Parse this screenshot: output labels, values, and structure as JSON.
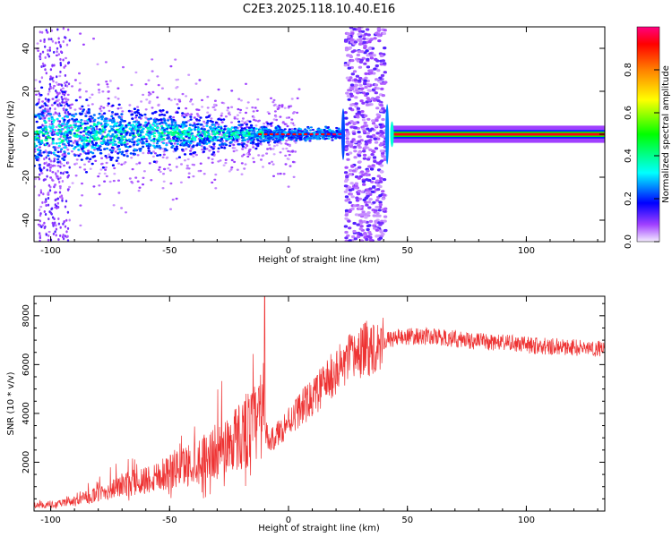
{
  "title": "C2E3.2025.118.10.40.E16",
  "chart_data": [
    {
      "type": "heatmap",
      "xlabel": "Height of straight line (km)",
      "ylabel": "Frequency (Hz)",
      "xlim": [
        -107,
        133
      ],
      "ylim": [
        -50,
        50
      ],
      "xticks": [
        -100,
        -50,
        0,
        50,
        100
      ],
      "yticks": [
        -40,
        -20,
        0,
        20,
        40
      ],
      "colorbar": {
        "label": "Normalized spectral amplitude",
        "range": [
          0,
          1
        ],
        "ticks": [
          0.0,
          0.2,
          0.4,
          0.6,
          0.8
        ],
        "colormap": [
          "#ffffff",
          "#8a00ff",
          "#0000ff",
          "#00ffff",
          "#00ff00",
          "#ffff00",
          "#ff8000",
          "#ff0000",
          "#ff0080"
        ]
      },
      "features": {
        "main_band_center_hz": 0,
        "noisy_region_km": [
          -107,
          -10
        ],
        "gap_region_km": [
          24,
          41
        ],
        "clean_band_km": [
          43,
          133
        ]
      }
    },
    {
      "type": "line",
      "xlabel": "Height of straight line (km)",
      "ylabel": "SNR (10 * v/v)",
      "xlim": [
        -107,
        133
      ],
      "ylim": [
        0,
        8800
      ],
      "xticks": [
        -100,
        -50,
        0,
        50,
        100
      ],
      "yticks": [
        2000,
        4000,
        6000,
        8000
      ],
      "color": "#ee3333",
      "envelope": {
        "x": [
          -107,
          -100,
          -90,
          -80,
          -70,
          -60,
          -50,
          -40,
          -30,
          -20,
          -15,
          -11,
          -10,
          -8,
          -5,
          0,
          5,
          10,
          15,
          20,
          25,
          30,
          35,
          40,
          45,
          50,
          60,
          70,
          80,
          90,
          100,
          110,
          120,
          133
        ],
        "y": [
          200,
          200,
          350,
          600,
          900,
          1100,
          1400,
          1700,
          2100,
          2700,
          3000,
          3200,
          3300,
          2800,
          3100,
          3700,
          4200,
          4600,
          5200,
          5700,
          6150,
          6500,
          6750,
          6950,
          7100,
          7150,
          7150,
          7050,
          6950,
          6900,
          6800,
          6750,
          6700,
          6650
        ]
      },
      "spike": {
        "x": -10,
        "y": 8800
      }
    }
  ]
}
